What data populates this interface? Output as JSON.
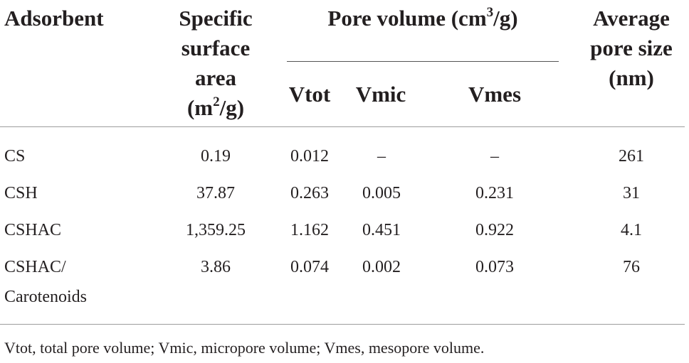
{
  "table": {
    "headers": {
      "adsorbent": "Adsorbent",
      "ssa_line1": "Specific",
      "ssa_line2": "surface",
      "ssa_line3": "area",
      "ssa_unit_pre": "(m",
      "ssa_unit_sup": "2",
      "ssa_unit_post": "/g)",
      "pore_volume_pre": "Pore volume (cm",
      "pore_volume_sup": "3",
      "pore_volume_post": "/g)",
      "vtot": "Vtot",
      "vmic": "Vmic",
      "vmes": "Vmes",
      "aps_line1": "Average",
      "aps_line2": "pore size",
      "aps_line3": "(nm)"
    },
    "rows": [
      {
        "adsorbent": "CS",
        "adsorbent2": "",
        "ssa": "0.19",
        "vtot": "0.012",
        "vmic": "–",
        "vmes": "–",
        "aps": "261"
      },
      {
        "adsorbent": "CSH",
        "adsorbent2": "",
        "ssa": "37.87",
        "vtot": "0.263",
        "vmic": "0.005",
        "vmes": "0.231",
        "aps": "31"
      },
      {
        "adsorbent": "CSHAC",
        "adsorbent2": "",
        "ssa": "1,359.25",
        "vtot": "1.162",
        "vmic": "0.451",
        "vmes": "0.922",
        "aps": "4.1"
      },
      {
        "adsorbent": "CSHAC/",
        "adsorbent2": "Carotenoids",
        "ssa": "3.86",
        "vtot": "0.074",
        "vmic": "0.002",
        "vmes": "0.073",
        "aps": "76"
      }
    ],
    "footnote": "Vtot, total pore volume; Vmic, micropore volume; Vmes, mesopore volume."
  }
}
